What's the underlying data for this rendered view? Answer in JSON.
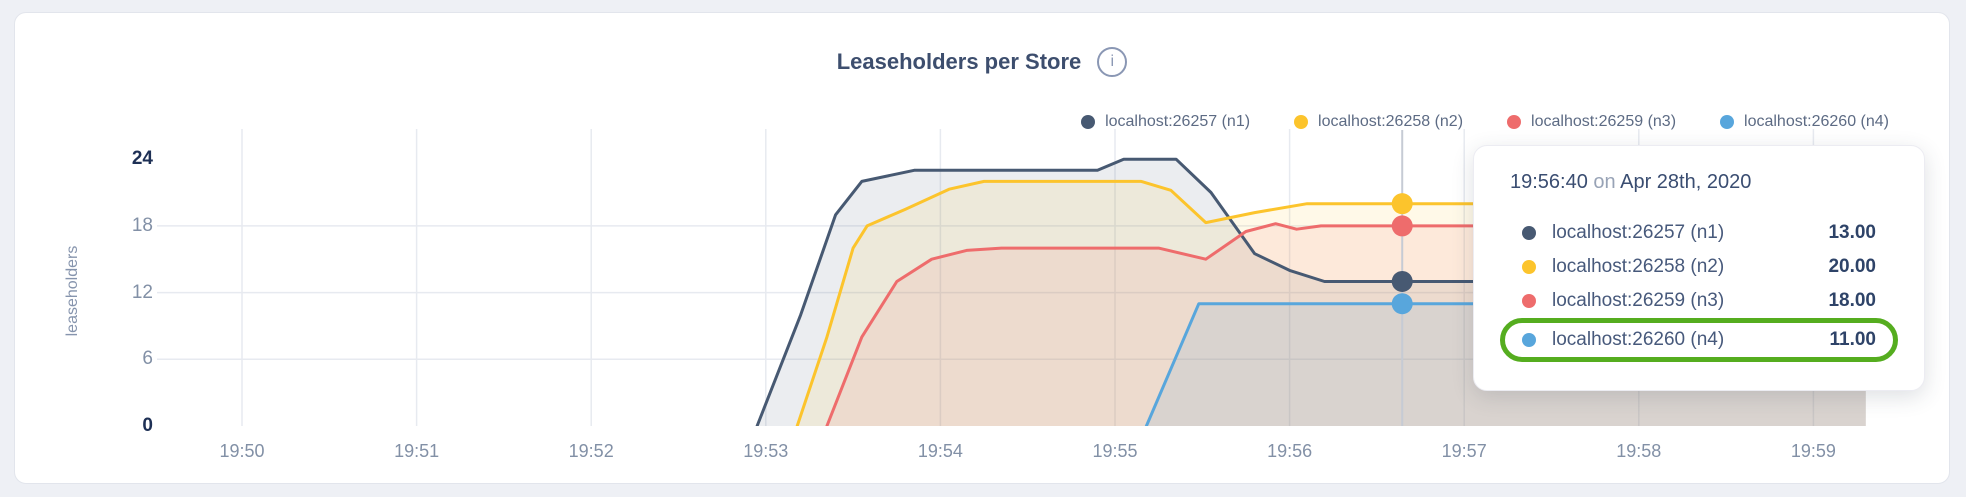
{
  "header": {
    "title": "Leaseholders per Store",
    "info_glyph": "i"
  },
  "legend": {
    "items": [
      {
        "label": "localhost:26257 (n1)",
        "color": "#475972"
      },
      {
        "label": "localhost:26258 (n2)",
        "color": "#FCC42C"
      },
      {
        "label": "localhost:26259 (n3)",
        "color": "#EE6C6C"
      },
      {
        "label": "localhost:26260 (n4)",
        "color": "#58A6DC"
      }
    ]
  },
  "tooltip": {
    "time": "19:56:40",
    "on_word": "on",
    "date": "Apr 28th, 2020",
    "highlight_color": "#55ad1f",
    "rows": [
      {
        "label": "localhost:26257 (n1)",
        "value": "13.00",
        "color": "#475972",
        "highlighted": false
      },
      {
        "label": "localhost:26258 (n2)",
        "value": "20.00",
        "color": "#FCC42C",
        "highlighted": false
      },
      {
        "label": "localhost:26259 (n3)",
        "value": "18.00",
        "color": "#EE6C6C",
        "highlighted": false
      },
      {
        "label": "localhost:26260 (n4)",
        "value": "11.00",
        "color": "#58A6DC",
        "highlighted": true
      }
    ]
  },
  "chart_data": {
    "type": "area",
    "title": "Leaseholders per Store",
    "xlabel": "",
    "ylabel": "leaseholders",
    "ylim": [
      0,
      24
    ],
    "grid": {
      "h_values": [
        6,
        12,
        18
      ],
      "v_minutes": [
        0,
        1,
        2,
        3,
        4,
        5,
        6,
        7,
        8,
        9
      ]
    },
    "x_base_time": "19:50",
    "x_ticks": [
      {
        "label": "19:50",
        "minute": 0
      },
      {
        "label": "19:51",
        "minute": 1
      },
      {
        "label": "19:52",
        "minute": 2
      },
      {
        "label": "19:53",
        "minute": 3
      },
      {
        "label": "19:54",
        "minute": 4
      },
      {
        "label": "19:55",
        "minute": 5
      },
      {
        "label": "19:56",
        "minute": 6
      },
      {
        "label": "19:57",
        "minute": 7
      },
      {
        "label": "19:58",
        "minute": 8
      },
      {
        "label": "19:59",
        "minute": 9
      }
    ],
    "y_ticks": [
      {
        "value": 24,
        "bold": true
      },
      {
        "value": 18,
        "bold": false
      },
      {
        "value": 12,
        "bold": false
      },
      {
        "value": 6,
        "bold": false
      },
      {
        "value": 0,
        "bold": true
      }
    ],
    "series": [
      {
        "name": "localhost:26257 (n1)",
        "color": "#475972",
        "fill_opacity": 0.11,
        "points": [
          [
            2.95,
            0
          ],
          [
            3.2,
            10
          ],
          [
            3.4,
            19
          ],
          [
            3.55,
            22
          ],
          [
            3.85,
            23
          ],
          [
            4.9,
            23
          ],
          [
            5.05,
            24
          ],
          [
            5.35,
            24
          ],
          [
            5.55,
            21
          ],
          [
            5.8,
            15.5
          ],
          [
            6.0,
            14
          ],
          [
            6.2,
            13
          ],
          [
            9.3,
            13
          ]
        ]
      },
      {
        "name": "localhost:26258 (n2)",
        "color": "#FCC42C",
        "fill_opacity": 0.11,
        "points": [
          [
            3.18,
            0
          ],
          [
            3.35,
            8
          ],
          [
            3.5,
            16
          ],
          [
            3.58,
            18
          ],
          [
            3.8,
            19.5
          ],
          [
            4.05,
            21.3
          ],
          [
            4.25,
            22
          ],
          [
            5.15,
            22
          ],
          [
            5.32,
            21.2
          ],
          [
            5.52,
            18.3
          ],
          [
            5.8,
            19.2
          ],
          [
            6.1,
            20
          ],
          [
            9.3,
            20
          ]
        ]
      },
      {
        "name": "localhost:26259 (n3)",
        "color": "#EE6C6C",
        "fill_opacity": 0.11,
        "points": [
          [
            3.35,
            0
          ],
          [
            3.55,
            8
          ],
          [
            3.75,
            13
          ],
          [
            3.95,
            15
          ],
          [
            4.15,
            15.8
          ],
          [
            4.35,
            16
          ],
          [
            5.25,
            16
          ],
          [
            5.52,
            15
          ],
          [
            5.75,
            17.5
          ],
          [
            5.92,
            18.2
          ],
          [
            6.04,
            17.7
          ],
          [
            6.18,
            18
          ],
          [
            9.3,
            18
          ]
        ]
      },
      {
        "name": "localhost:26260 (n4)",
        "color": "#58A6DC",
        "fill_opacity": 0.13,
        "points": [
          [
            5.18,
            0
          ],
          [
            5.48,
            11
          ],
          [
            9.3,
            11
          ]
        ]
      }
    ],
    "hover": {
      "time_label": "19:56:40",
      "time_minutes": 6.645,
      "values": [
        13,
        20,
        18,
        11
      ]
    }
  }
}
